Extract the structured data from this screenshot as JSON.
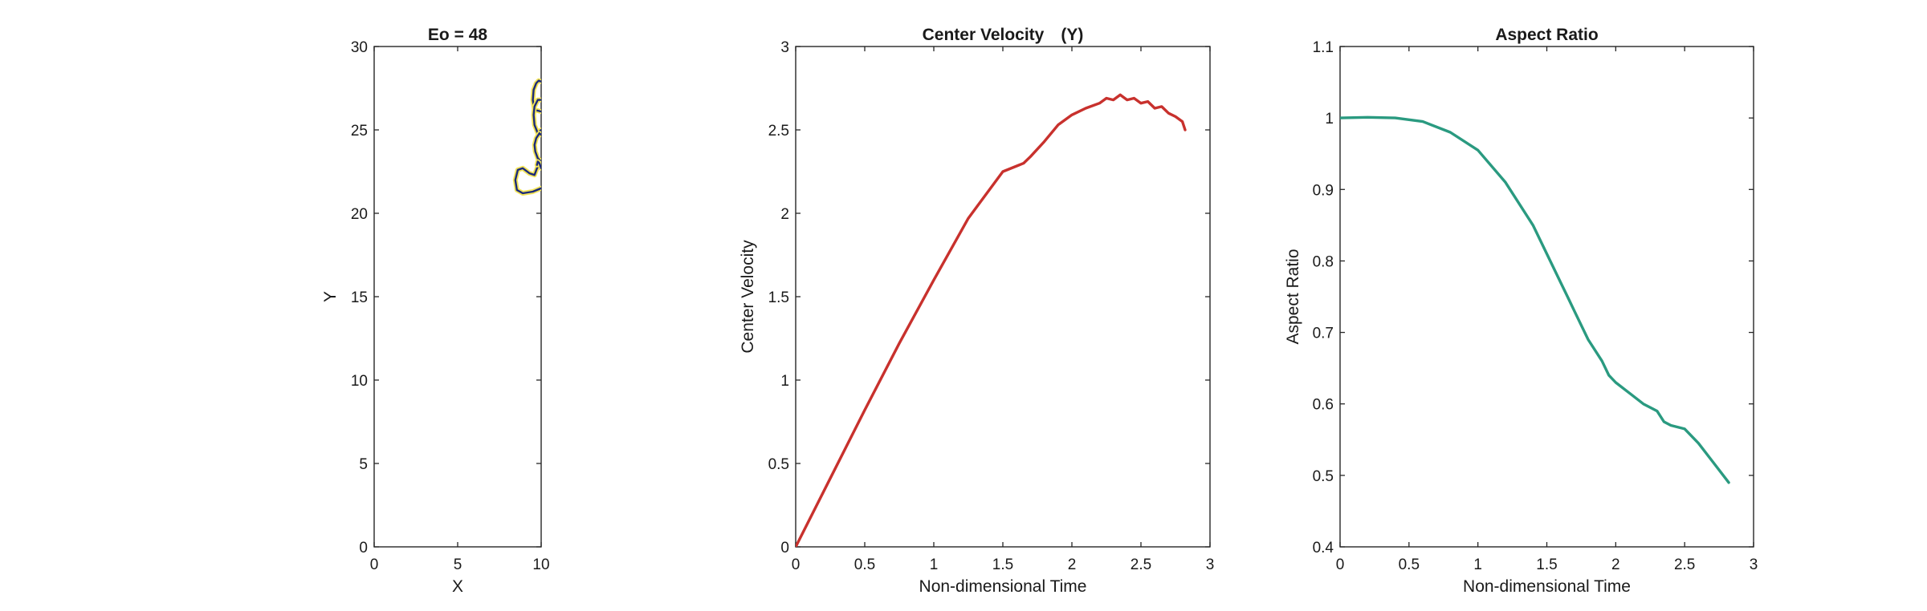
{
  "chart_data": [
    {
      "type": "line",
      "title": "Eo = 48",
      "xlabel": "X",
      "ylabel": "Y",
      "xlim": [
        0,
        10
      ],
      "ylim": [
        0,
        30
      ],
      "xticks": [
        0,
        5,
        10
      ],
      "yticks": [
        0,
        5,
        10,
        15,
        20,
        25,
        30
      ],
      "colors": {
        "outer": "#f2e35a",
        "inner": "#1b2a7a"
      },
      "contours": [
        {
          "x": [
            10,
            9.6,
            9.5,
            9.55,
            9.7,
            9.85,
            10
          ],
          "y": [
            26.1,
            26.2,
            26.8,
            27.4,
            27.8,
            27.95,
            27.9
          ]
        },
        {
          "x": [
            10,
            9.8,
            9.6,
            9.55,
            9.6,
            9.8,
            10
          ],
          "y": [
            25.0,
            24.8,
            25.3,
            25.9,
            26.4,
            26.8,
            26.8
          ]
        },
        {
          "x": [
            10,
            9.8,
            9.65,
            9.6,
            9.7,
            9.9,
            10
          ],
          "y": [
            23.1,
            23.3,
            23.7,
            24.1,
            24.5,
            24.8,
            24.7
          ]
        },
        {
          "x": [
            10,
            9.5,
            8.9,
            8.55,
            8.45,
            8.6,
            8.9,
            9.3,
            9.6,
            9.75,
            9.9,
            10
          ],
          "y": [
            21.5,
            21.3,
            21.2,
            21.4,
            22.0,
            22.6,
            22.7,
            22.4,
            22.3,
            22.7,
            22.9,
            22.8
          ]
        },
        {
          "x": [
            9.75,
            9.8,
            9.9,
            10
          ],
          "y": [
            22.9,
            23.1,
            23.0,
            22.7
          ]
        }
      ]
    },
    {
      "type": "line",
      "title": "Center Velocity　(Y)",
      "xlabel": "Non-dimensional Time",
      "ylabel": "Center Velocity",
      "xlim": [
        0,
        3
      ],
      "ylim": [
        0,
        3
      ],
      "xticks": [
        0,
        0.5,
        1,
        1.5,
        2,
        2.5,
        3
      ],
      "yticks": [
        0,
        0.5,
        1,
        1.5,
        2,
        2.5,
        3
      ],
      "series": [
        {
          "color": "#c8312d",
          "x": [
            0,
            0.25,
            0.5,
            0.75,
            1.0,
            1.25,
            1.5,
            1.65,
            1.7,
            1.8,
            1.9,
            2.0,
            2.1,
            2.2,
            2.25,
            2.3,
            2.35,
            2.4,
            2.45,
            2.5,
            2.55,
            2.6,
            2.65,
            2.7,
            2.75,
            2.8,
            2.82
          ],
          "y": [
            0,
            0.41,
            0.82,
            1.22,
            1.6,
            1.97,
            2.25,
            2.3,
            2.34,
            2.43,
            2.53,
            2.59,
            2.63,
            2.66,
            2.69,
            2.68,
            2.71,
            2.68,
            2.69,
            2.66,
            2.67,
            2.63,
            2.64,
            2.6,
            2.58,
            2.55,
            2.5
          ]
        }
      ]
    },
    {
      "type": "line",
      "title": "Aspect Ratio",
      "xlabel": "Non-dimensional Time",
      "ylabel": "Aspect Ratio",
      "xlim": [
        0,
        3
      ],
      "ylim": [
        0.4,
        1.1
      ],
      "xticks": [
        0,
        0.5,
        1,
        1.5,
        2,
        2.5,
        3
      ],
      "yticks": [
        0.4,
        0.5,
        0.6,
        0.7,
        0.8,
        0.9,
        1,
        1.1
      ],
      "series": [
        {
          "color": "#2a9a80",
          "x": [
            0,
            0.2,
            0.4,
            0.6,
            0.8,
            1.0,
            1.2,
            1.4,
            1.6,
            1.65,
            1.7,
            1.8,
            1.9,
            1.95,
            2.0,
            2.1,
            2.2,
            2.3,
            2.35,
            2.4,
            2.5,
            2.6,
            2.7,
            2.82
          ],
          "y": [
            1.0,
            1.001,
            1.0,
            0.995,
            0.98,
            0.955,
            0.91,
            0.85,
            0.77,
            0.75,
            0.73,
            0.69,
            0.66,
            0.64,
            0.63,
            0.615,
            0.6,
            0.59,
            0.575,
            0.57,
            0.565,
            0.545,
            0.52,
            0.49
          ]
        }
      ]
    }
  ]
}
